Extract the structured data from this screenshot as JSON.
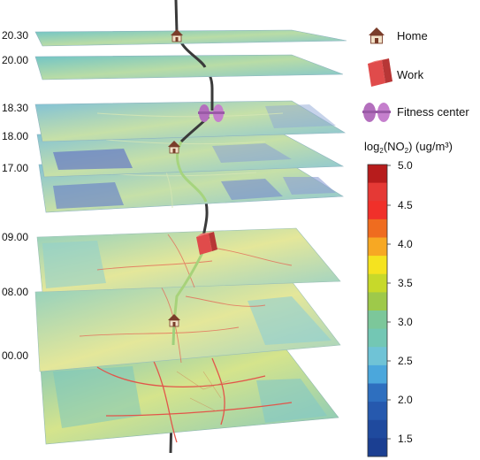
{
  "layers": [
    {
      "time": "20.30",
      "tint": "#9fd4c8"
    },
    {
      "time": "20.00",
      "tint": "#8fcbd6"
    },
    {
      "time": "18.30",
      "tint": "#a8d8c6"
    },
    {
      "time": "18.00",
      "tint": "#93c8d6"
    },
    {
      "time": "17.00",
      "tint": "#8cc2d8"
    },
    {
      "time": "09.00",
      "tint": "#c9e0a6"
    },
    {
      "time": "08.00",
      "tint": "#b8dcc2"
    },
    {
      "time": "00.00",
      "tint": "#c4dea0"
    }
  ],
  "legend": {
    "home_label": "Home",
    "work_label": "Work",
    "fitness_label": "Fitness center",
    "title_prefix": "log",
    "title_sub": "2",
    "title_mid": "(NO",
    "title_sub2": "2",
    "title_suffix": ") (ug/m³)"
  },
  "colorbar": {
    "ticks": [
      "5.0",
      "4.5",
      "4.0",
      "3.5",
      "3.0",
      "2.5",
      "2.0",
      "1.5"
    ],
    "colors": [
      "#b71c1c",
      "#e53935",
      "#f0302a",
      "#ef6c1f",
      "#f7a823",
      "#f5e31f",
      "#c7d92a",
      "#9ec94a",
      "#7cc79a",
      "#73c7b4",
      "#6fc3d6",
      "#4ba7dc",
      "#2e6fbf",
      "#2659ae",
      "#1f4a9e",
      "#1b3f92"
    ]
  }
}
